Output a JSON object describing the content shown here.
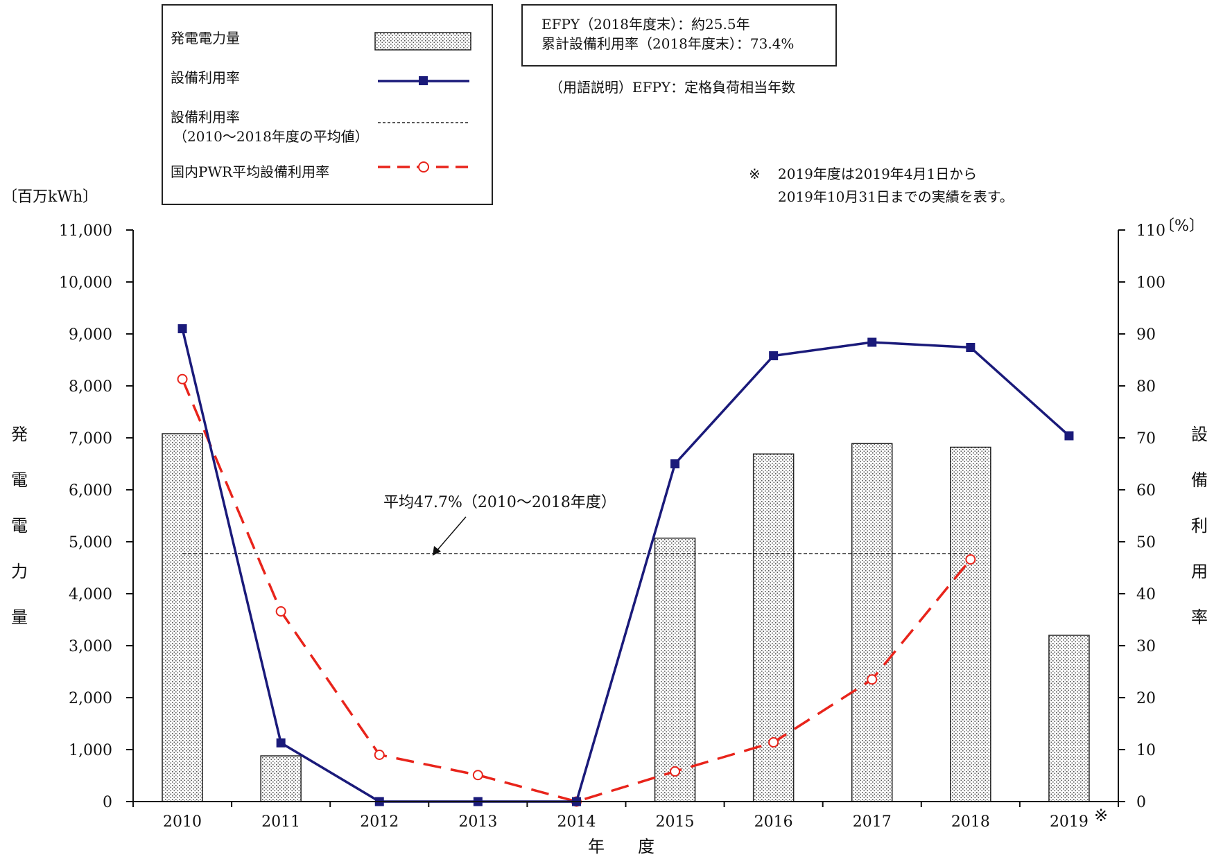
{
  "chart_data": {
    "type": "bar+line",
    "x_axis": {
      "title": "年　　度",
      "categories": [
        "2010",
        "2011",
        "2012",
        "2013",
        "2014",
        "2015",
        "2016",
        "2017",
        "2018",
        "2019"
      ],
      "tick_labels": [
        "2010",
        "2011",
        "2012",
        "2013",
        "2014",
        "2015",
        "2016",
        "2017",
        "2018",
        "2019"
      ],
      "last_tick_mark": "※"
    },
    "y_axis_left": {
      "title": "発電電力量",
      "unit": "〔百万kWh〕",
      "ylim": [
        0,
        11000
      ],
      "ticks": [
        0,
        1000,
        2000,
        3000,
        4000,
        5000,
        6000,
        7000,
        8000,
        9000,
        10000,
        11000
      ],
      "tick_labels": [
        "0",
        "1,000",
        "2,000",
        "3,000",
        "4,000",
        "5,000",
        "6,000",
        "7,000",
        "8,000",
        "9,000",
        "10,000",
        "11,000"
      ]
    },
    "y_axis_right": {
      "title": "設備利用率",
      "unit": "〔%〕",
      "ylim": [
        0,
        110
      ],
      "ticks": [
        0,
        10,
        20,
        30,
        40,
        50,
        60,
        70,
        80,
        90,
        100,
        110
      ],
      "tick_labels": [
        "0",
        "10",
        "20",
        "30",
        "40",
        "50",
        "60",
        "70",
        "80",
        "90",
        "100",
        "110"
      ]
    },
    "series": [
      {
        "name": "発電電力量",
        "type": "bar",
        "axis": "left",
        "pattern": "dotted",
        "values": [
          7080,
          880,
          0,
          0,
          0,
          5070,
          6690,
          6890,
          6820,
          3200
        ]
      },
      {
        "name": "設備利用率",
        "type": "line",
        "axis": "right",
        "color": "#1a1a7a",
        "marker": "square",
        "values": [
          91.0,
          11.3,
          0,
          0,
          0,
          65.0,
          85.8,
          88.4,
          87.4,
          70.4
        ]
      },
      {
        "name": "設備利用率",
        "name_line2": "（2010～2018年度の平均値）",
        "type": "hline",
        "axis": "right",
        "color": "#222222",
        "value": 47.7,
        "x_range": [
          "2010",
          "2018"
        ]
      },
      {
        "name": "国内PWR平均設備利用率",
        "type": "line",
        "axis": "right",
        "color": "#e8241b",
        "marker": "circle-open",
        "dashed": true,
        "values": [
          81.3,
          36.6,
          9.0,
          5.1,
          0,
          5.8,
          11.4,
          23.5,
          46.6,
          null
        ]
      }
    ],
    "annotations": {
      "average_label": "平均47.7%（2010～2018年度）",
      "efpy_line1": "EFPY（2018年度末）：約25.5年",
      "efpy_line2": "累計設備利用率（2018年度末）：73.4%",
      "glossary": "（用語説明）EFPY：定格負荷相当年数",
      "note_mark": "※",
      "note_line1": "2019年度は2019年4月1日から",
      "note_line2": "2019年10月31日までの実績を表す。"
    },
    "legend_position": "top-left"
  }
}
